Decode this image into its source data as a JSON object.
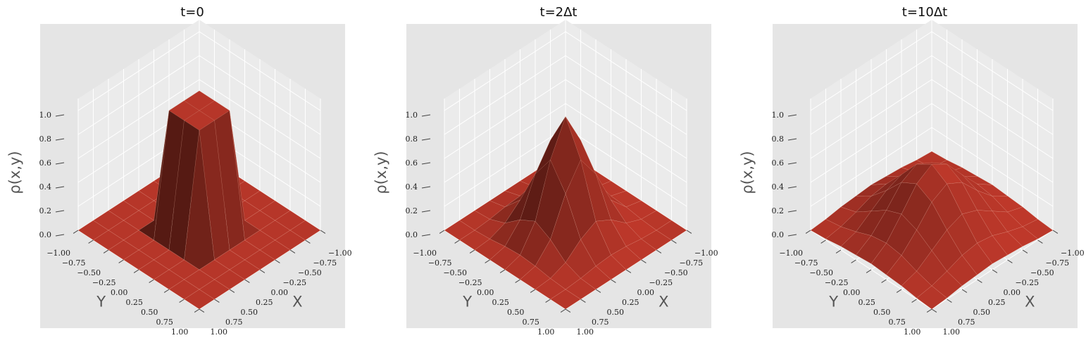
{
  "chart_data": [
    {
      "type": "surface",
      "title": "t=0",
      "xlabel": "X",
      "ylabel": "Y",
      "zlabel": "ρ(x,y)",
      "color": "#c0392b",
      "x": [
        -1,
        -0.75,
        -0.5,
        -0.25,
        0,
        0.25,
        0.5,
        0.75,
        1
      ],
      "y": [
        -1,
        -0.75,
        -0.5,
        -0.25,
        0,
        0.25,
        0.5,
        0.75,
        1
      ],
      "z": [
        [
          0,
          0,
          0,
          0,
          0,
          0,
          0,
          0,
          0
        ],
        [
          0,
          0,
          0,
          0,
          0,
          0,
          0,
          0,
          0
        ],
        [
          0,
          0,
          0,
          0,
          0,
          0,
          0,
          0,
          0
        ],
        [
          0,
          0,
          0,
          1,
          1,
          1,
          0,
          0,
          0
        ],
        [
          0,
          0,
          0,
          1,
          1,
          1,
          0,
          0,
          0
        ],
        [
          0,
          0,
          0,
          1,
          1,
          1,
          0,
          0,
          0
        ],
        [
          0,
          0,
          0,
          0,
          0,
          0,
          0,
          0,
          0
        ],
        [
          0,
          0,
          0,
          0,
          0,
          0,
          0,
          0,
          0
        ],
        [
          0,
          0,
          0,
          0,
          0,
          0,
          0,
          0,
          0
        ]
      ],
      "xlim": [
        -1,
        1
      ],
      "ylim": [
        -1,
        1
      ],
      "zlim": [
        0,
        1.1
      ],
      "xticks": [
        {
          "value": -1,
          "label": "−1.00"
        },
        {
          "value": -0.75,
          "label": "−0.75"
        },
        {
          "value": -0.5,
          "label": "−0.50"
        },
        {
          "value": -0.25,
          "label": "−0.25"
        },
        {
          "value": 0,
          "label": "0.00"
        },
        {
          "value": 0.25,
          "label": "0.25"
        },
        {
          "value": 0.5,
          "label": "0.50"
        },
        {
          "value": 0.75,
          "label": "0.75"
        },
        {
          "value": 1,
          "label": "1.00"
        }
      ],
      "yticks": [
        {
          "value": -1,
          "label": "−1.00"
        },
        {
          "value": -0.75,
          "label": "−0.75"
        },
        {
          "value": -0.5,
          "label": "−0.50"
        },
        {
          "value": -0.25,
          "label": "−0.25"
        },
        {
          "value": 0,
          "label": "0.00"
        },
        {
          "value": 0.25,
          "label": "0.25"
        },
        {
          "value": 0.5,
          "label": "0.50"
        },
        {
          "value": 0.75,
          "label": "0.75"
        },
        {
          "value": 1,
          "label": "1.00"
        }
      ],
      "zticks": [
        {
          "value": 0,
          "label": "0.0"
        },
        {
          "value": 0.2,
          "label": "0.2"
        },
        {
          "value": 0.4,
          "label": "0.4"
        },
        {
          "value": 0.6,
          "label": "0.6"
        },
        {
          "value": 0.8,
          "label": "0.8"
        },
        {
          "value": 1,
          "label": "1.0"
        }
      ],
      "grid": true
    },
    {
      "type": "surface",
      "title": "t=2Δt",
      "xlabel": "X",
      "ylabel": "Y",
      "zlabel": "ρ(x,y)",
      "color": "#c0392b",
      "x": [
        -1,
        -0.75,
        -0.5,
        -0.25,
        0,
        0.25,
        0.5,
        0.75,
        1
      ],
      "y": [
        -1,
        -0.75,
        -0.5,
        -0.25,
        0,
        0.25,
        0.5,
        0.75,
        1
      ],
      "z": [
        [
          0,
          0,
          0,
          0,
          0,
          0,
          0,
          0,
          0
        ],
        [
          0,
          0,
          0.01,
          0.03,
          0.04,
          0.03,
          0.01,
          0,
          0
        ],
        [
          0,
          0.01,
          0.06,
          0.17,
          0.24,
          0.17,
          0.06,
          0.01,
          0
        ],
        [
          0,
          0.03,
          0.17,
          0.47,
          0.67,
          0.47,
          0.17,
          0.03,
          0
        ],
        [
          0,
          0.04,
          0.24,
          0.67,
          0.95,
          0.67,
          0.24,
          0.04,
          0
        ],
        [
          0,
          0.03,
          0.17,
          0.47,
          0.67,
          0.47,
          0.17,
          0.03,
          0
        ],
        [
          0,
          0.01,
          0.06,
          0.17,
          0.24,
          0.17,
          0.06,
          0.01,
          0
        ],
        [
          0,
          0,
          0.01,
          0.03,
          0.04,
          0.03,
          0.01,
          0,
          0
        ],
        [
          0,
          0,
          0,
          0,
          0,
          0,
          0,
          0,
          0
        ]
      ],
      "xlim": [
        -1,
        1
      ],
      "ylim": [
        -1,
        1
      ],
      "zlim": [
        0,
        1.1
      ],
      "xticks": [
        {
          "value": -1,
          "label": "−1.00"
        },
        {
          "value": -0.75,
          "label": "−0.75"
        },
        {
          "value": -0.5,
          "label": "−0.50"
        },
        {
          "value": -0.25,
          "label": "−0.25"
        },
        {
          "value": 0,
          "label": "0.00"
        },
        {
          "value": 0.25,
          "label": "0.25"
        },
        {
          "value": 0.5,
          "label": "0.50"
        },
        {
          "value": 0.75,
          "label": "0.75"
        },
        {
          "value": 1,
          "label": "1.00"
        }
      ],
      "yticks": [
        {
          "value": -1,
          "label": "−1.00"
        },
        {
          "value": -0.75,
          "label": "−0.75"
        },
        {
          "value": -0.5,
          "label": "−0.50"
        },
        {
          "value": -0.25,
          "label": "−0.25"
        },
        {
          "value": 0,
          "label": "0.00"
        },
        {
          "value": 0.25,
          "label": "0.25"
        },
        {
          "value": 0.5,
          "label": "0.50"
        },
        {
          "value": 0.75,
          "label": "0.75"
        },
        {
          "value": 1,
          "label": "1.00"
        }
      ],
      "zticks": [
        {
          "value": 0,
          "label": "0.0"
        },
        {
          "value": 0.2,
          "label": "0.2"
        },
        {
          "value": 0.4,
          "label": "0.4"
        },
        {
          "value": 0.6,
          "label": "0.6"
        },
        {
          "value": 0.8,
          "label": "0.8"
        },
        {
          "value": 1,
          "label": "1.0"
        }
      ],
      "grid": true
    },
    {
      "type": "surface",
      "title": "t=10Δt",
      "xlabel": "X",
      "ylabel": "Y",
      "zlabel": "ρ(x,y)",
      "color": "#c0392b",
      "x": [
        -1,
        -0.75,
        -0.5,
        -0.25,
        0,
        0.25,
        0.5,
        0.75,
        1
      ],
      "y": [
        -1,
        -0.75,
        -0.5,
        -0.25,
        0,
        0.25,
        0.5,
        0.75,
        1
      ],
      "z": [
        [
          0,
          0.01,
          0.03,
          0.04,
          0.05,
          0.04,
          0.03,
          0.01,
          0
        ],
        [
          0.01,
          0.03,
          0.07,
          0.12,
          0.14,
          0.12,
          0.07,
          0.03,
          0.01
        ],
        [
          0.03,
          0.07,
          0.16,
          0.25,
          0.3,
          0.25,
          0.16,
          0.07,
          0.03
        ],
        [
          0.04,
          0.12,
          0.25,
          0.4,
          0.47,
          0.4,
          0.25,
          0.12,
          0.04
        ],
        [
          0.05,
          0.14,
          0.3,
          0.47,
          0.55,
          0.47,
          0.3,
          0.14,
          0.05
        ],
        [
          0.04,
          0.12,
          0.25,
          0.4,
          0.47,
          0.4,
          0.25,
          0.12,
          0.04
        ],
        [
          0.03,
          0.07,
          0.16,
          0.25,
          0.3,
          0.25,
          0.16,
          0.07,
          0.03
        ],
        [
          0.01,
          0.03,
          0.07,
          0.12,
          0.14,
          0.12,
          0.07,
          0.03,
          0.01
        ],
        [
          0,
          0.01,
          0.03,
          0.04,
          0.05,
          0.04,
          0.03,
          0.01,
          0
        ]
      ],
      "xlim": [
        -1,
        1
      ],
      "ylim": [
        -1,
        1
      ],
      "zlim": [
        0,
        1.1
      ],
      "xticks": [
        {
          "value": -1,
          "label": "−1.00"
        },
        {
          "value": -0.75,
          "label": "−0.75"
        },
        {
          "value": -0.5,
          "label": "−0.50"
        },
        {
          "value": -0.25,
          "label": "−0.25"
        },
        {
          "value": 0,
          "label": "0.00"
        },
        {
          "value": 0.25,
          "label": "0.25"
        },
        {
          "value": 0.5,
          "label": "0.50"
        },
        {
          "value": 0.75,
          "label": "0.75"
        },
        {
          "value": 1,
          "label": "1.00"
        }
      ],
      "yticks": [
        {
          "value": -1,
          "label": "−1.00"
        },
        {
          "value": -0.75,
          "label": "−0.75"
        },
        {
          "value": -0.5,
          "label": "−0.50"
        },
        {
          "value": -0.25,
          "label": "−0.25"
        },
        {
          "value": 0,
          "label": "0.00"
        },
        {
          "value": 0.25,
          "label": "0.25"
        },
        {
          "value": 0.5,
          "label": "0.50"
        },
        {
          "value": 0.75,
          "label": "0.75"
        },
        {
          "value": 1,
          "label": "1.00"
        }
      ],
      "zticks": [
        {
          "value": 0,
          "label": "0.0"
        },
        {
          "value": 0.2,
          "label": "0.2"
        },
        {
          "value": 0.4,
          "label": "0.4"
        },
        {
          "value": 0.6,
          "label": "0.6"
        },
        {
          "value": 0.8,
          "label": "0.8"
        },
        {
          "value": 1,
          "label": "1.0"
        }
      ],
      "grid": true
    }
  ]
}
